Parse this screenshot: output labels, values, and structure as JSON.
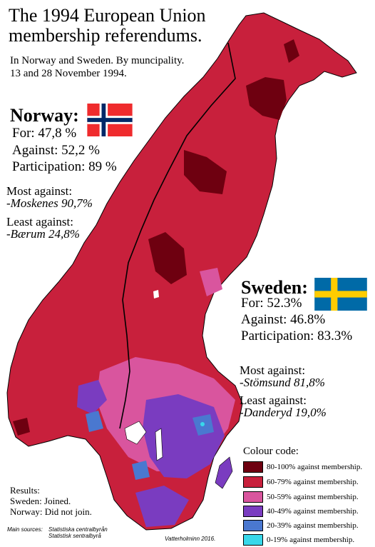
{
  "title_line1": "The 1994 European Union",
  "title_line2": "membership referendums.",
  "subtitle_line1": "In Norway and Sweden. By muncipality.",
  "subtitle_line2": "13 and 28 November 1994.",
  "norway": {
    "name": "Norway:",
    "for": "For: 47,8 %",
    "against": "Against: 52,2 %",
    "participation": "Participation: 89 %",
    "most_against_label": "Most against:",
    "most_against_value": "-Moskenes 90,7%",
    "least_against_label": "Least against:",
    "least_against_value": "-Bærum 24,8%"
  },
  "sweden": {
    "name": "Sweden:",
    "for": "For: 52.3%",
    "against": "Against: 46.8%",
    "participation": "Participation: 83.3%",
    "most_against_label": "Most against:",
    "most_against_value": "-Stömsund 81,8%",
    "least_against_label": "Least against:",
    "least_against_value": "-Danderyd 19,0%"
  },
  "legend": {
    "title": "Colour code:",
    "items": [
      {
        "label": "80-100% against membership.",
        "color": "#6e0010"
      },
      {
        "label": "60-79% against membership.",
        "color": "#c8203c"
      },
      {
        "label": "50-59% against membership.",
        "color": "#d9559e"
      },
      {
        "label": "40-49% against membership.",
        "color": "#7a3cc0"
      },
      {
        "label": "20-39% against membership.",
        "color": "#4a78d0"
      },
      {
        "label": "0-19% against membership.",
        "color": "#38d8ea"
      }
    ]
  },
  "results": {
    "heading": "Results:",
    "sweden": "Sweden: Joined.",
    "norway": "Norway: Did not join."
  },
  "sources": {
    "label": "Main sources:",
    "line1": "Statistiska centralbyrån",
    "line2": "Statistisk sentralbyrå"
  },
  "credit": "Vatterholminn 2016."
}
